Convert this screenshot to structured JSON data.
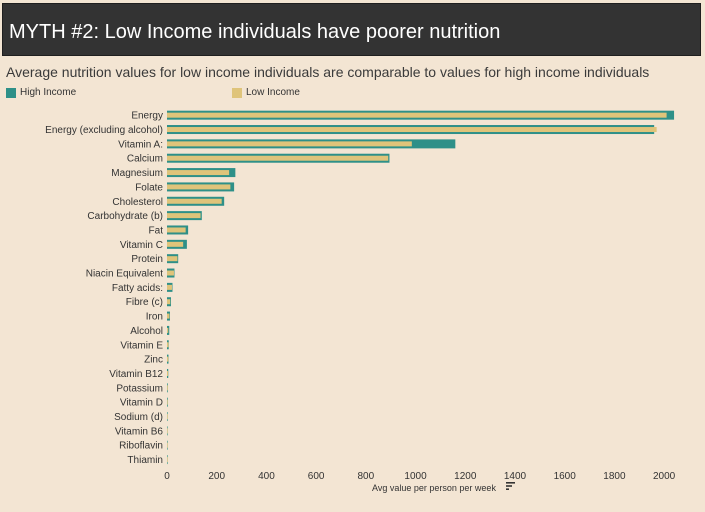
{
  "header": {
    "title": "MYTH #2: Low Income individuals have poorer nutrition",
    "subtitle": "Average nutrition values for low income individuals are comparable to values for high income individuals"
  },
  "colors": {
    "high_income": "#2e9088",
    "low_income": "#dfc47a",
    "header_bg": "#333333",
    "page_bg": "#f3e5d3"
  },
  "icons": {
    "sort": "sort-descending-icon"
  },
  "chart_data": {
    "type": "bar",
    "orientation": "horizontal",
    "categories": [
      "Energy",
      "Energy (excluding alcohol)",
      "Vitamin A:",
      "Calcium",
      "Magnesium",
      "Folate",
      "Cholesterol",
      "Carbohydrate (b)",
      "Fat",
      "Vitamin C",
      "Protein",
      "Niacin Equivalent",
      "Fatty acids:",
      "Fibre (c)",
      "Iron",
      "Alcohol",
      "Vitamin E",
      "Zinc",
      "Vitamin B12",
      "Potassium",
      "Vitamin D",
      "Sodium (d)",
      "Vitamin B6",
      "Riboflavin",
      "Thiamin"
    ],
    "series": [
      {
        "name": "High Income",
        "values": [
          2040,
          1960,
          1160,
          895,
          275,
          270,
          230,
          140,
          85,
          80,
          45,
          30,
          22,
          16,
          12,
          9,
          7,
          6,
          5,
          3,
          3,
          2,
          2,
          1,
          1
        ]
      },
      {
        "name": "Low Income",
        "values": [
          2010,
          1970,
          985,
          890,
          250,
          255,
          220,
          135,
          75,
          65,
          42,
          28,
          20,
          13,
          10,
          5,
          6,
          5,
          4,
          3,
          2,
          2,
          2,
          1,
          1
        ]
      }
    ],
    "xlabel": "Avg value per person per week",
    "ylabel": "",
    "xlim": [
      0,
      2080
    ],
    "xticks": [
      0,
      200,
      400,
      600,
      800,
      1000,
      1200,
      1400,
      1600,
      1800,
      2000
    ],
    "legend": "top-left",
    "grid": false
  }
}
